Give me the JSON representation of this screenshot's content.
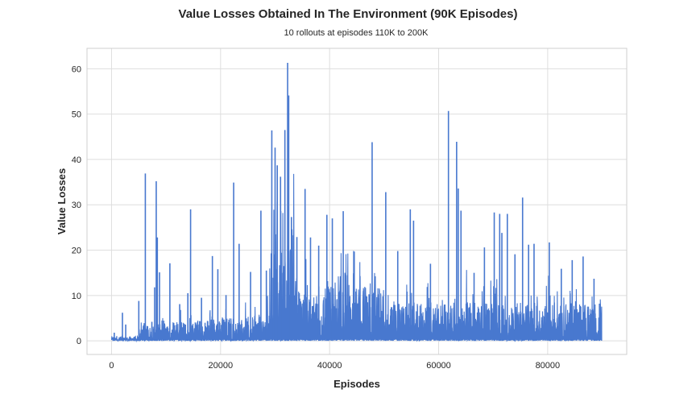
{
  "chart_data": {
    "type": "line",
    "title": "Value Losses Obtained In The Environment (90K Episodes)",
    "subtitle": "10 rollouts at episodes 110K to 200K",
    "xlabel": "Episodes",
    "ylabel": "Value Losses",
    "xlim": [
      -4500,
      94500
    ],
    "ylim": [
      -3,
      64.5
    ],
    "xticks": [
      0,
      20000,
      40000,
      60000,
      80000
    ],
    "yticks": [
      0,
      10,
      20,
      30,
      40,
      50,
      60
    ],
    "grid": true,
    "color": "#4878cf",
    "peaks": [
      {
        "x": 500,
        "y": 1.8
      },
      {
        "x": 2000,
        "y": 6.2
      },
      {
        "x": 2600,
        "y": 3.6
      },
      {
        "x": 5000,
        "y": 8.8
      },
      {
        "x": 6000,
        "y": 3.9
      },
      {
        "x": 6200,
        "y": 36.9
      },
      {
        "x": 7400,
        "y": 4.2
      },
      {
        "x": 7900,
        "y": 11.8
      },
      {
        "x": 8200,
        "y": 35.2
      },
      {
        "x": 8400,
        "y": 22.8
      },
      {
        "x": 8800,
        "y": 15.1
      },
      {
        "x": 10700,
        "y": 17.1
      },
      {
        "x": 12500,
        "y": 8.1
      },
      {
        "x": 14000,
        "y": 10.5
      },
      {
        "x": 14500,
        "y": 29.0
      },
      {
        "x": 16500,
        "y": 9.5
      },
      {
        "x": 18500,
        "y": 18.7
      },
      {
        "x": 19500,
        "y": 15.8
      },
      {
        "x": 21000,
        "y": 10.1
      },
      {
        "x": 22400,
        "y": 34.9
      },
      {
        "x": 23400,
        "y": 21.4
      },
      {
        "x": 25500,
        "y": 15.2
      },
      {
        "x": 27400,
        "y": 28.7
      },
      {
        "x": 28400,
        "y": 15.5
      },
      {
        "x": 29400,
        "y": 46.4
      },
      {
        "x": 30000,
        "y": 42.6
      },
      {
        "x": 30400,
        "y": 38.7
      },
      {
        "x": 31000,
        "y": 36.2
      },
      {
        "x": 31800,
        "y": 46.5
      },
      {
        "x": 32300,
        "y": 61.3
      },
      {
        "x": 32500,
        "y": 54.1
      },
      {
        "x": 33000,
        "y": 27.3
      },
      {
        "x": 34000,
        "y": 22.9
      },
      {
        "x": 35500,
        "y": 33.5
      },
      {
        "x": 36500,
        "y": 22.8
      },
      {
        "x": 38000,
        "y": 21.0
      },
      {
        "x": 39500,
        "y": 27.8
      },
      {
        "x": 40500,
        "y": 27.0
      },
      {
        "x": 42500,
        "y": 28.6
      },
      {
        "x": 44500,
        "y": 19.6
      },
      {
        "x": 47800,
        "y": 43.8
      },
      {
        "x": 50300,
        "y": 32.8
      },
      {
        "x": 52500,
        "y": 19.8
      },
      {
        "x": 54800,
        "y": 29.0
      },
      {
        "x": 55400,
        "y": 26.5
      },
      {
        "x": 58500,
        "y": 17.0
      },
      {
        "x": 61800,
        "y": 50.7
      },
      {
        "x": 63300,
        "y": 43.9
      },
      {
        "x": 63600,
        "y": 33.6
      },
      {
        "x": 64100,
        "y": 28.7
      },
      {
        "x": 66500,
        "y": 15.0
      },
      {
        "x": 68400,
        "y": 20.6
      },
      {
        "x": 70200,
        "y": 28.3
      },
      {
        "x": 71200,
        "y": 28.0
      },
      {
        "x": 71600,
        "y": 23.8
      },
      {
        "x": 72600,
        "y": 28.0
      },
      {
        "x": 74000,
        "y": 19.1
      },
      {
        "x": 75400,
        "y": 31.6
      },
      {
        "x": 76500,
        "y": 21.2
      },
      {
        "x": 77500,
        "y": 21.4
      },
      {
        "x": 80300,
        "y": 21.7
      },
      {
        "x": 82500,
        "y": 15.9
      },
      {
        "x": 84500,
        "y": 17.8
      },
      {
        "x": 86500,
        "y": 18.6
      },
      {
        "x": 88500,
        "y": 13.7
      },
      {
        "x": 89500,
        "y": 8.2
      }
    ]
  }
}
